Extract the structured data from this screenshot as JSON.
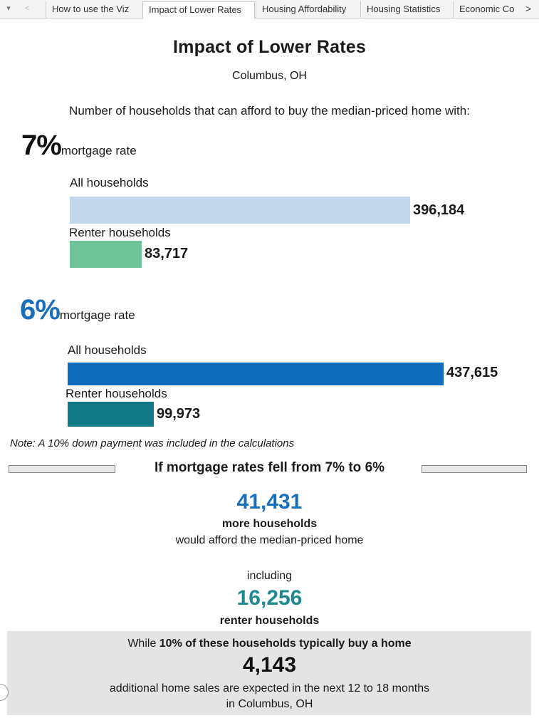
{
  "tabs": {
    "dropdown_glyph": "▾",
    "prev_glyph": "<",
    "next_glyph": ">",
    "items": [
      {
        "label": "How to use the Viz"
      },
      {
        "label": "Impact of Lower Rates",
        "active": true
      },
      {
        "label": "Housing Affordability"
      },
      {
        "label": "Housing Statistics"
      },
      {
        "label": "Economic Co"
      }
    ]
  },
  "header": {
    "title": "Impact of Lower Rates",
    "location": "Columbus, OH",
    "question": "Number of households that can afford to buy the median-priced home with:"
  },
  "scenario_7": {
    "rate": "7%",
    "rate_suffix": "mortgage rate",
    "rate_color": "#111111",
    "all_label": "All households",
    "all_value_text": "396,184",
    "all_value": 396184,
    "all_color": "#c2d6ec",
    "renter_label": "Renter households",
    "renter_value_text": "83,717",
    "renter_value": 83717,
    "renter_color": "#6fc49a"
  },
  "scenario_6": {
    "rate": "6%",
    "rate_suffix": "mortgage rate",
    "rate_color": "#1a6fba",
    "all_label": "All households",
    "all_value_text": "437,615",
    "all_value": 437615,
    "all_color": "#0f6bbb",
    "renter_label": "Renter households",
    "renter_value_text": "99,973",
    "renter_value": 99973,
    "renter_color": "#127a86"
  },
  "note": "Note: A 10% down payment was included in the calculations",
  "summary": {
    "heading": "If mortgage rates fell from 7% to 6%",
    "more_value": "41,431",
    "more_color": "#1a6fba",
    "more_label": "more households",
    "more_desc": "would afford the median-priced home",
    "including": "including",
    "renter_value": "16,256",
    "renter_color": "#1d8a90",
    "renter_label": "renter households"
  },
  "sales": {
    "prefix": "While ",
    "bold": "10% of these households typically buy a home",
    "value": "4,143",
    "line1": "additional home sales are expected in the next 12 to 18 months",
    "line2": "in Columbus, OH"
  }
}
